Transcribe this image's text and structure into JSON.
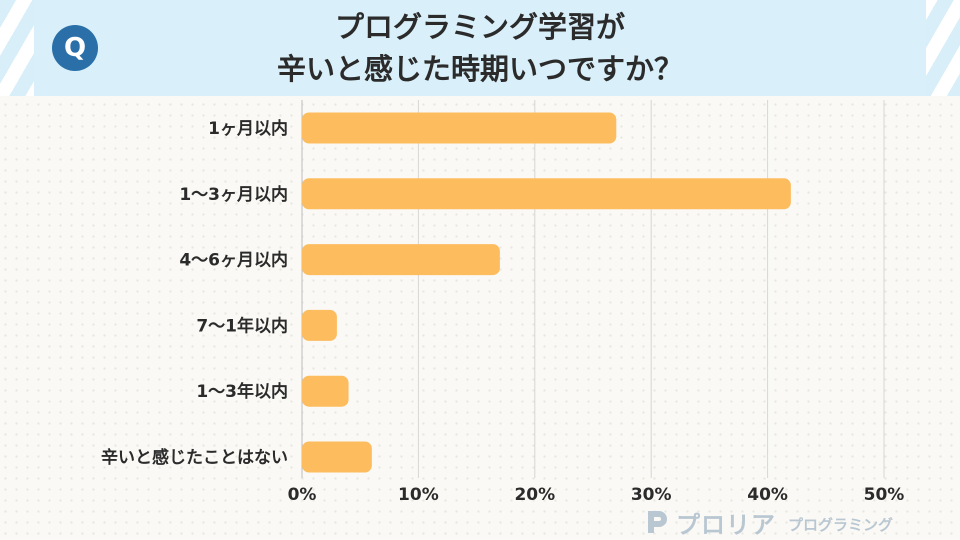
{
  "badge": {
    "letter": "Q"
  },
  "title": {
    "line1": "プログラミング学習が",
    "line2": "辛いと感じた時期いつですか？"
  },
  "colors": {
    "bar": "#fdbd5f",
    "header_bg": "#d9eff9",
    "badge": "#2a6fa8",
    "grid": "#d6d6d6",
    "logo": "#b9c7d2"
  },
  "chart_data": {
    "type": "bar",
    "orientation": "horizontal",
    "categories": [
      "1ヶ月以内",
      "1～3ヶ月以内",
      "4～6ヶ月以内",
      "7～1年以内",
      "1～3年以内",
      "辛いと感じたことはない"
    ],
    "values": [
      27,
      42,
      17,
      3,
      4,
      6
    ],
    "xlim": [
      0,
      50
    ],
    "xticks": [
      "0%",
      "10%",
      "20%",
      "30%",
      "40%",
      "50%"
    ],
    "xtick_values": [
      0,
      10,
      20,
      30,
      40,
      50
    ],
    "grid": true
  },
  "footer": {
    "logo_main": "プロリア",
    "logo_sub": "プログラミング",
    "logo_icon": "p-logo-icon"
  }
}
